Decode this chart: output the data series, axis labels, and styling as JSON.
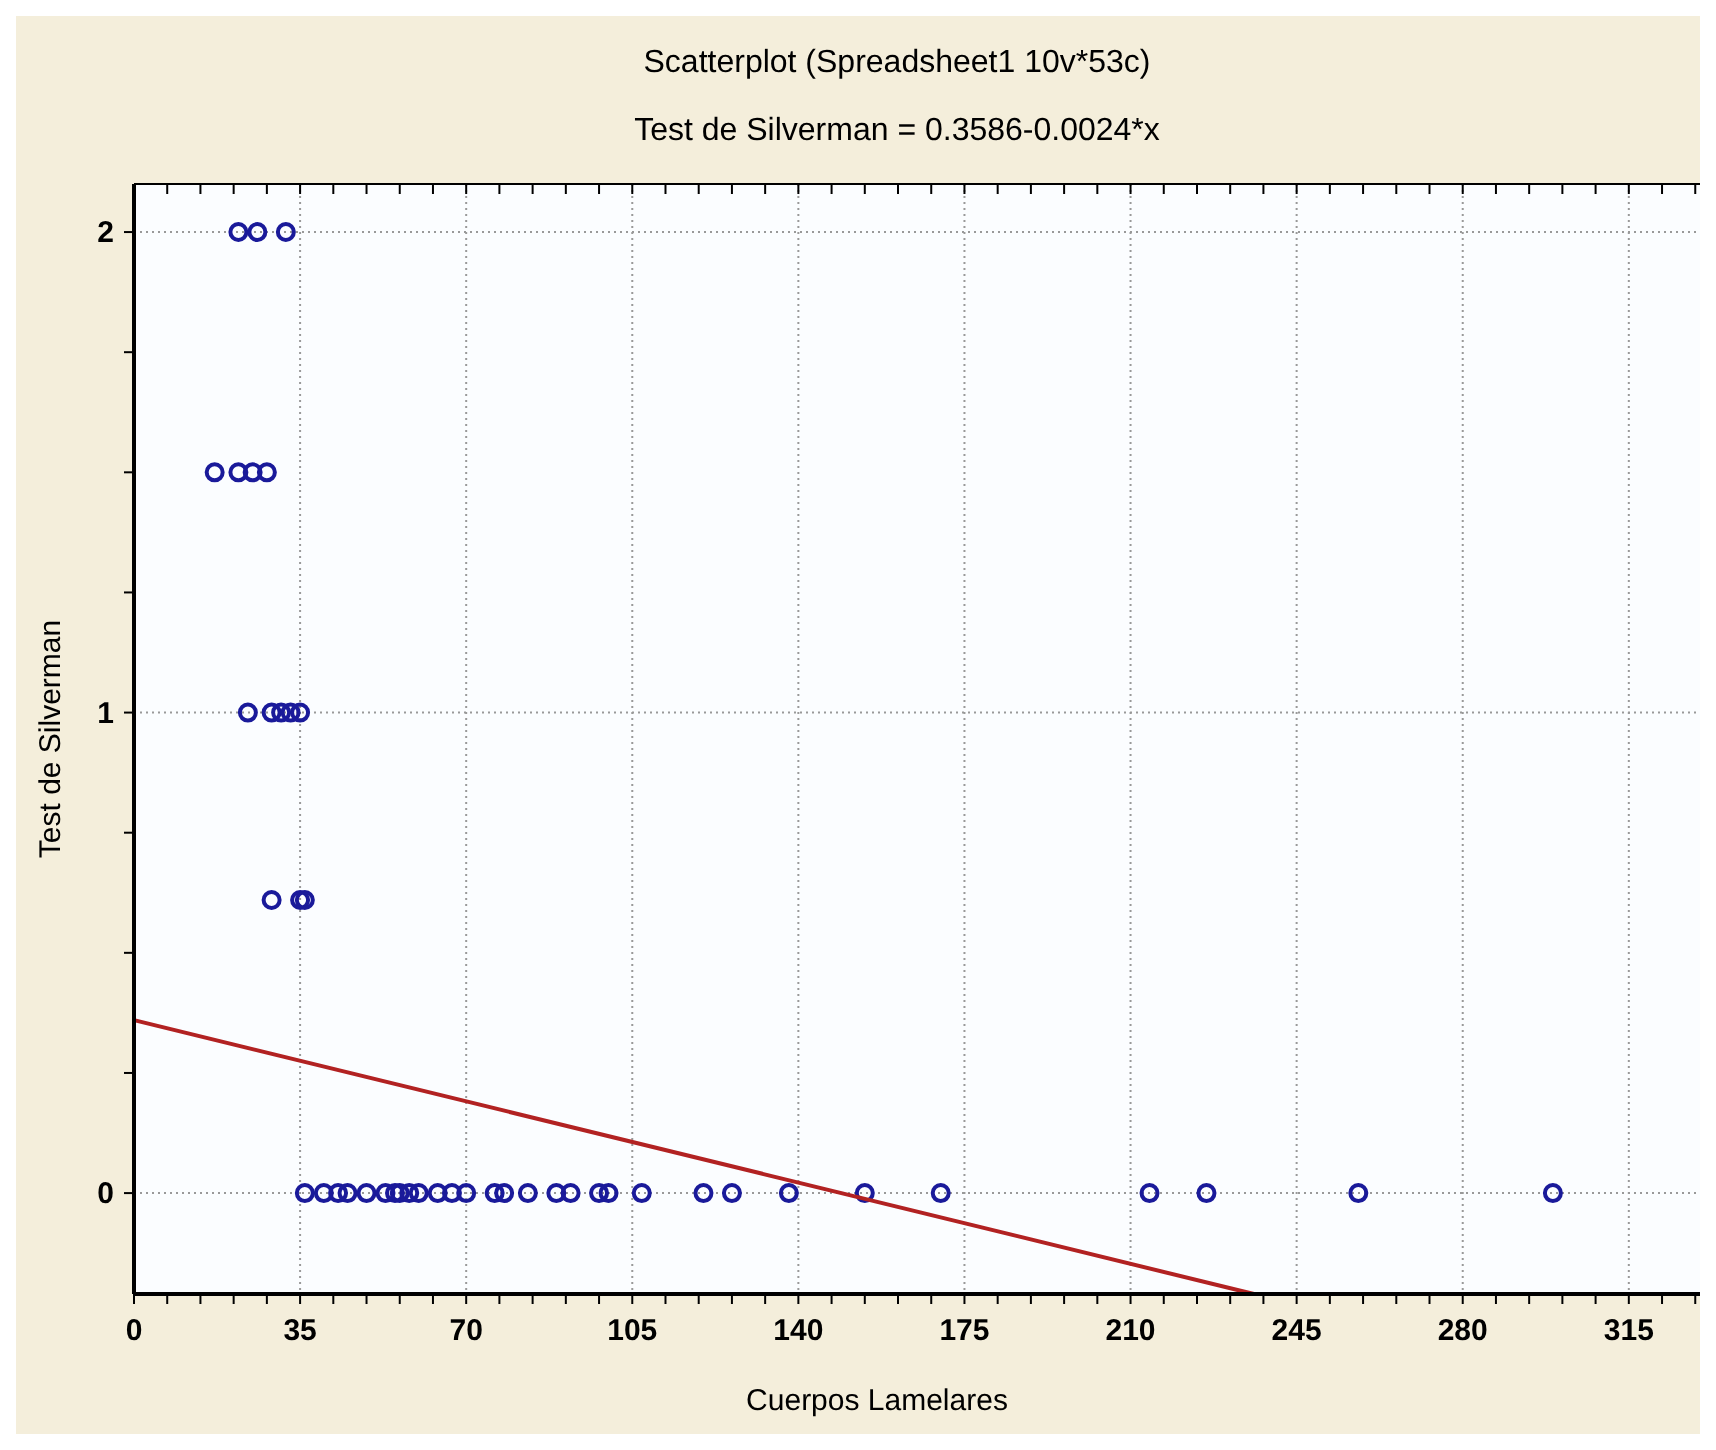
{
  "chart_data": {
    "type": "scatter",
    "title": "Scatterplot (Spreadsheet1 10v*53c)",
    "subtitle": "Test de Silverman = 0.3586-0.0024*x",
    "xlabel": "Cuerpos Lamelares",
    "ylabel": "Test de Silverman",
    "xlim": [
      0,
      330
    ],
    "ylim": [
      -0.21,
      2.1
    ],
    "xticks": [
      0,
      {
        "value": 7,
        "label": null
      },
      {
        "value": 14,
        "label": null
      },
      {
        "value": 21,
        "label": null
      },
      {
        "value": 28,
        "label": null
      },
      35,
      {
        "value": 42,
        "label": null
      },
      {
        "value": 49,
        "label": null
      },
      {
        "value": 56,
        "label": null
      },
      {
        "value": 63,
        "label": null
      },
      70,
      {
        "value": 77,
        "label": null
      },
      {
        "value": 84,
        "label": null
      },
      {
        "value": 91,
        "label": null
      },
      {
        "value": 98,
        "label": null
      },
      105,
      {
        "value": 112,
        "label": null
      },
      {
        "value": 119,
        "label": null
      },
      {
        "value": 126,
        "label": null
      },
      {
        "value": 133,
        "label": null
      },
      140,
      {
        "value": 147,
        "label": null
      },
      {
        "value": 154,
        "label": null
      },
      {
        "value": 161,
        "label": null
      },
      {
        "value": 168,
        "label": null
      },
      175,
      {
        "value": 182,
        "label": null
      },
      {
        "value": 189,
        "label": null
      },
      {
        "value": 196,
        "label": null
      },
      {
        "value": 203,
        "label": null
      },
      210,
      {
        "value": 217,
        "label": null
      },
      {
        "value": 224,
        "label": null
      },
      {
        "value": 231,
        "label": null
      },
      {
        "value": 238,
        "label": null
      },
      245,
      {
        "value": 252,
        "label": null
      },
      {
        "value": 259,
        "label": null
      },
      {
        "value": 266,
        "label": null
      },
      {
        "value": 273,
        "label": null
      },
      280,
      {
        "value": 287,
        "label": null
      },
      {
        "value": 294,
        "label": null
      },
      {
        "value": 301,
        "label": null
      },
      {
        "value": 308,
        "label": null
      },
      315,
      {
        "value": 322,
        "label": null
      },
      {
        "value": 329,
        "label": null
      }
    ],
    "yticks": [
      0,
      {
        "value": 0.25,
        "label": null
      },
      {
        "value": 0.5,
        "label": null
      },
      {
        "value": 0.75,
        "label": null
      },
      1,
      {
        "value": 1.25,
        "label": null
      },
      {
        "value": 1.5,
        "label": null
      },
      {
        "value": 1.75,
        "label": null
      },
      2
    ],
    "grid": true,
    "series": [
      {
        "color": "#1a1a9a",
        "marker": "circle",
        "x": [
          22,
          26,
          32,
          17,
          22,
          25,
          28,
          24,
          29,
          31,
          33,
          35,
          29,
          35,
          36,
          36,
          40,
          43,
          45,
          49,
          53,
          55,
          56,
          58,
          60,
          64,
          67,
          70,
          76,
          78,
          83,
          89,
          92,
          98,
          100,
          107,
          120,
          126,
          138,
          154,
          170,
          214,
          226,
          258,
          299
        ],
        "values": [
          2,
          2,
          2,
          1.5,
          1.5,
          1.5,
          1.5,
          1,
          1,
          1,
          1,
          1,
          0.61,
          0.61,
          0.61,
          0,
          0,
          0,
          0,
          0,
          0,
          0,
          0,
          0,
          0,
          0,
          0,
          0,
          0,
          0,
          0,
          0,
          0,
          0,
          0,
          0,
          0,
          0,
          0,
          0,
          0,
          0,
          0,
          0,
          0
        ]
      },
      {
        "type": "line",
        "color": "#b22222",
        "marker": "none",
        "x": [
          0,
          236
        ],
        "values": [
          0.36,
          -0.21
        ]
      }
    ]
  }
}
